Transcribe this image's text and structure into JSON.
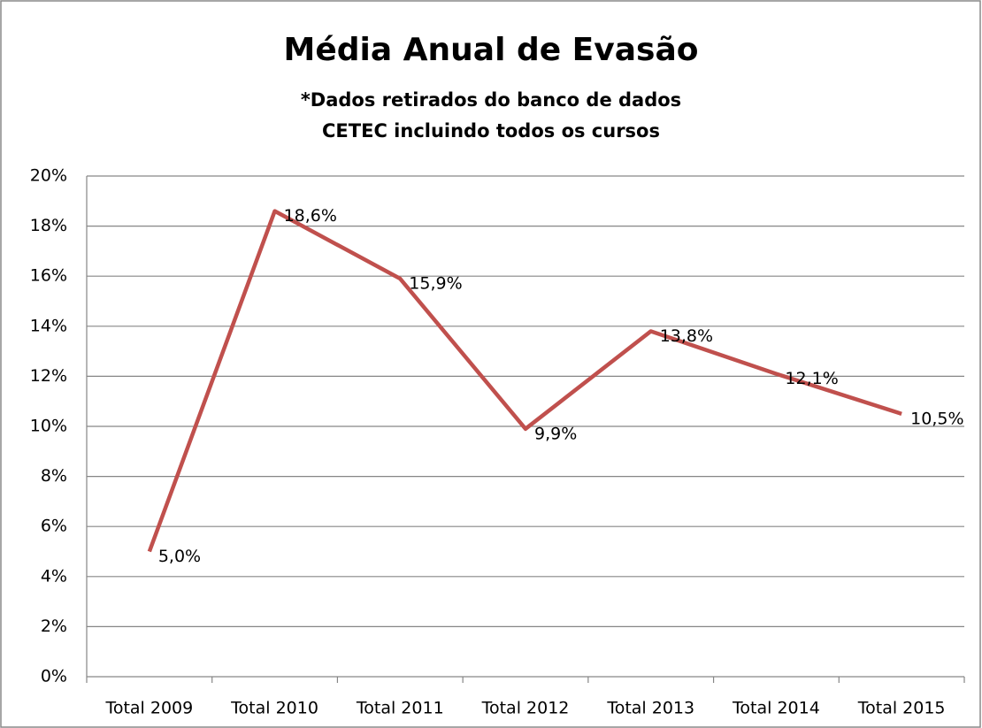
{
  "chart_data": {
    "type": "line",
    "title": "Média Anual de Evasão",
    "subtitle": "*Dados retirados do banco de dados CETEC incluindo todos os cursos",
    "categories": [
      "Total 2009",
      "Total 2010",
      "Total 2011",
      "Total 2012",
      "Total 2013",
      "Total 2014",
      "Total 2015"
    ],
    "values": [
      5.0,
      18.6,
      15.9,
      9.9,
      13.8,
      12.1,
      10.5
    ],
    "value_labels": [
      "5,0%",
      "18,6%",
      "15,9%",
      "9,9%",
      "13,8%",
      "12,1%",
      "10,5%"
    ],
    "color": "#c0504d",
    "ylim": [
      0,
      20
    ],
    "yticks": [
      {
        "value": 0,
        "label": "0%"
      },
      {
        "value": 2,
        "label": "2%"
      },
      {
        "value": 4,
        "label": "4%"
      },
      {
        "value": 6,
        "label": "6%"
      },
      {
        "value": 8,
        "label": "8%"
      },
      {
        "value": 10,
        "label": "10%"
      },
      {
        "value": 12,
        "label": "12%"
      },
      {
        "value": 14,
        "label": "14%"
      },
      {
        "value": 16,
        "label": "16%"
      },
      {
        "value": 18,
        "label": "18%"
      },
      {
        "value": 20,
        "label": "20%"
      }
    ],
    "grid": true
  }
}
